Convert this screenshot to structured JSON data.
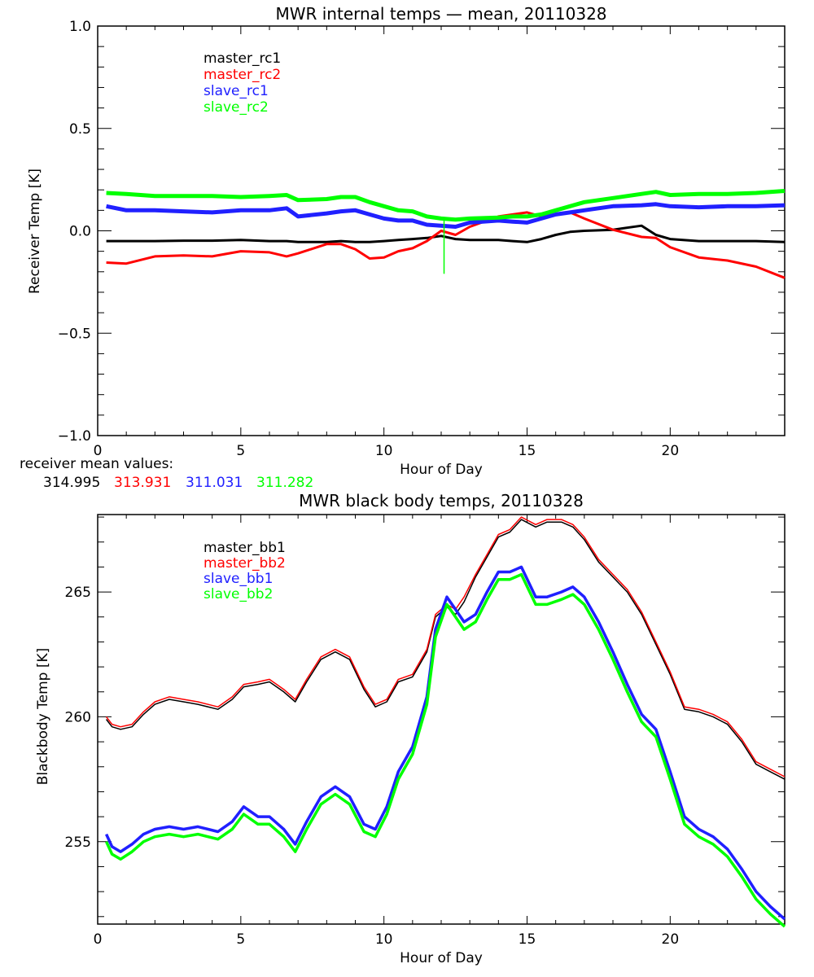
{
  "chart_data": [
    {
      "type": "line",
      "title": "MWR internal temps — mean, 20110328",
      "xlabel": "Hour of Day",
      "ylabel": "Receiver Temp [K]",
      "xlim": [
        0,
        24
      ],
      "ylim": [
        -1.0,
        1.0
      ],
      "xticks": [
        "0",
        "5",
        "10",
        "15",
        "20"
      ],
      "xtick_values": [
        0,
        5,
        10,
        15,
        20
      ],
      "yticks": [
        "-1.0",
        "-0.5",
        "0.0",
        "0.5",
        "1.0"
      ],
      "ytick_values": [
        -1.0,
        -0.5,
        0.0,
        0.5,
        1.0
      ],
      "grid": false,
      "legend_position": "top-left",
      "x": [
        0.3,
        1,
        2,
        3,
        4,
        5,
        6,
        6.6,
        7,
        8,
        8.5,
        9,
        9.5,
        10,
        10.5,
        11,
        11.5,
        12,
        12.5,
        13,
        14,
        14.5,
        15,
        15.5,
        16,
        16.5,
        17,
        18,
        19,
        19.5,
        20,
        21,
        22,
        23,
        24
      ],
      "series": [
        {
          "name": "master_rc1",
          "color": "#000000",
          "values": [
            -0.05,
            -0.05,
            -0.05,
            -0.048,
            -0.048,
            -0.045,
            -0.05,
            -0.05,
            -0.055,
            -0.055,
            -0.05,
            -0.055,
            -0.055,
            -0.05,
            -0.045,
            -0.04,
            -0.035,
            -0.025,
            -0.04,
            -0.045,
            -0.045,
            -0.05,
            -0.055,
            -0.04,
            -0.02,
            -0.005,
            0.0,
            0.005,
            0.025,
            -0.02,
            -0.04,
            -0.05,
            -0.05,
            -0.05,
            -0.055
          ]
        },
        {
          "name": "master_rc2",
          "color": "#ff0000",
          "values": [
            -0.155,
            -0.16,
            -0.125,
            -0.12,
            -0.125,
            -0.1,
            -0.105,
            -0.125,
            -0.11,
            -0.065,
            -0.065,
            -0.09,
            -0.135,
            -0.13,
            -0.1,
            -0.085,
            -0.05,
            0.0,
            -0.02,
            0.02,
            0.07,
            0.08,
            0.09,
            0.07,
            0.08,
            0.09,
            0.06,
            0.005,
            -0.03,
            -0.035,
            -0.08,
            -0.13,
            -0.145,
            -0.175,
            -0.23
          ]
        },
        {
          "name": "slave_rc1",
          "color": "#2020ff",
          "values": [
            0.12,
            0.1,
            0.1,
            0.095,
            0.09,
            0.1,
            0.1,
            0.11,
            0.07,
            0.085,
            0.095,
            0.1,
            0.08,
            0.06,
            0.05,
            0.05,
            0.03,
            0.025,
            0.02,
            0.04,
            0.05,
            0.045,
            0.04,
            0.06,
            0.08,
            0.09,
            0.1,
            0.12,
            0.125,
            0.13,
            0.12,
            0.115,
            0.12,
            0.12,
            0.125
          ]
        },
        {
          "name": "slave_rc2",
          "color": "#00ff00",
          "values": [
            0.185,
            0.18,
            0.17,
            0.17,
            0.17,
            0.165,
            0.17,
            0.175,
            0.15,
            0.155,
            0.165,
            0.165,
            0.14,
            0.12,
            0.1,
            0.095,
            0.07,
            0.06,
            0.055,
            0.06,
            0.065,
            0.07,
            0.07,
            0.08,
            0.1,
            0.12,
            0.14,
            0.16,
            0.18,
            0.19,
            0.175,
            0.18,
            0.18,
            0.185,
            0.195
          ]
        }
      ],
      "annotation_spike": {
        "x": 12.1,
        "y_from": 0.06,
        "y_to": -0.21,
        "color": "#00ff00"
      },
      "mean_values_label": "receiver mean values:",
      "mean_values": [
        {
          "value": "314.995",
          "color": "#000000"
        },
        {
          "value": "313.931",
          "color": "#ff0000"
        },
        {
          "value": "311.031",
          "color": "#2020ff"
        },
        {
          "value": "311.282",
          "color": "#00ff00"
        }
      ]
    },
    {
      "type": "line",
      "title": "MWR black body temps, 20110328",
      "xlabel": "Hour of Day",
      "ylabel": "Blackbody Temp [K]",
      "xlim": [
        0,
        24
      ],
      "ylim": [
        251.7,
        268.1
      ],
      "xticks": [
        "0",
        "5",
        "10",
        "15",
        "20"
      ],
      "xtick_values": [
        0,
        5,
        10,
        15,
        20
      ],
      "yticks": [
        "255",
        "260",
        "265"
      ],
      "ytick_values": [
        255,
        260,
        265
      ],
      "grid": false,
      "legend_position": "top-left",
      "x": [
        0.3,
        0.5,
        0.8,
        1.2,
        1.6,
        2.0,
        2.5,
        3.0,
        3.5,
        4.2,
        4.7,
        5.1,
        5.6,
        6.0,
        6.5,
        6.9,
        7.3,
        7.8,
        8.3,
        8.8,
        9.3,
        9.7,
        10.1,
        10.5,
        11.0,
        11.5,
        11.8,
        12.2,
        12.5,
        12.8,
        13.2,
        13.6,
        14.0,
        14.4,
        14.8,
        15.3,
        15.7,
        16.2,
        16.6,
        17.0,
        17.5,
        18.0,
        18.5,
        19.0,
        19.5,
        20.0,
        20.5,
        21.0,
        21.5,
        22.0,
        22.5,
        23.0,
        23.5,
        24.0
      ],
      "series": [
        {
          "name": "master_bb1",
          "color": "#000000",
          "values": [
            259.9,
            259.6,
            259.5,
            259.6,
            260.1,
            260.5,
            260.7,
            260.6,
            260.5,
            260.3,
            260.7,
            261.2,
            261.3,
            261.4,
            261.0,
            260.6,
            261.4,
            262.3,
            262.6,
            262.3,
            261.1,
            260.4,
            260.6,
            261.4,
            261.6,
            262.6,
            264.0,
            264.4,
            264.1,
            264.6,
            265.6,
            266.4,
            267.2,
            267.4,
            267.9,
            267.6,
            267.8,
            267.8,
            267.6,
            267.1,
            266.2,
            265.6,
            265.0,
            264.1,
            262.9,
            261.7,
            260.3,
            260.2,
            260.0,
            259.7,
            259.0,
            258.1,
            257.8,
            257.5
          ]
        },
        {
          "name": "master_bb2",
          "color": "#ff0000",
          "values": [
            260.0,
            259.7,
            259.6,
            259.7,
            260.2,
            260.6,
            260.8,
            260.7,
            260.6,
            260.4,
            260.8,
            261.3,
            261.4,
            261.5,
            261.1,
            260.7,
            261.5,
            262.4,
            262.7,
            262.4,
            261.2,
            260.5,
            260.7,
            261.5,
            261.7,
            262.7,
            264.1,
            264.5,
            264.3,
            264.8,
            265.7,
            266.5,
            267.3,
            267.5,
            268.0,
            267.7,
            267.9,
            267.9,
            267.7,
            267.2,
            266.3,
            265.7,
            265.1,
            264.2,
            263.0,
            261.8,
            260.4,
            260.3,
            260.1,
            259.8,
            259.1,
            258.2,
            257.9,
            257.6
          ]
        },
        {
          "name": "slave_bb1",
          "color": "#2020ff",
          "values": [
            255.3,
            254.8,
            254.6,
            254.9,
            255.3,
            255.5,
            255.6,
            255.5,
            255.6,
            255.4,
            255.8,
            256.4,
            256.0,
            256.0,
            255.5,
            254.9,
            255.8,
            256.8,
            257.2,
            256.8,
            255.7,
            255.5,
            256.4,
            257.8,
            258.8,
            260.8,
            263.5,
            264.8,
            264.3,
            263.8,
            264.1,
            265.0,
            265.8,
            265.8,
            266.0,
            264.8,
            264.8,
            265.0,
            265.2,
            264.8,
            263.8,
            262.6,
            261.3,
            260.1,
            259.5,
            257.8,
            256.0,
            255.5,
            255.2,
            254.7,
            253.9,
            253.0,
            252.4,
            251.9
          ]
        },
        {
          "name": "slave_bb2",
          "color": "#00ff00",
          "values": [
            255.0,
            254.5,
            254.3,
            254.6,
            255.0,
            255.2,
            255.3,
            255.2,
            255.3,
            255.1,
            255.5,
            256.1,
            255.7,
            255.7,
            255.2,
            254.6,
            255.5,
            256.5,
            256.9,
            256.5,
            255.4,
            255.2,
            256.1,
            257.5,
            258.5,
            260.5,
            263.2,
            264.5,
            264.0,
            263.5,
            263.8,
            264.7,
            265.5,
            265.5,
            265.7,
            264.5,
            264.5,
            264.7,
            264.9,
            264.5,
            263.5,
            262.3,
            261.0,
            259.8,
            259.2,
            257.5,
            255.7,
            255.2,
            254.9,
            254.4,
            253.6,
            252.7,
            252.1,
            251.6
          ]
        }
      ]
    }
  ]
}
